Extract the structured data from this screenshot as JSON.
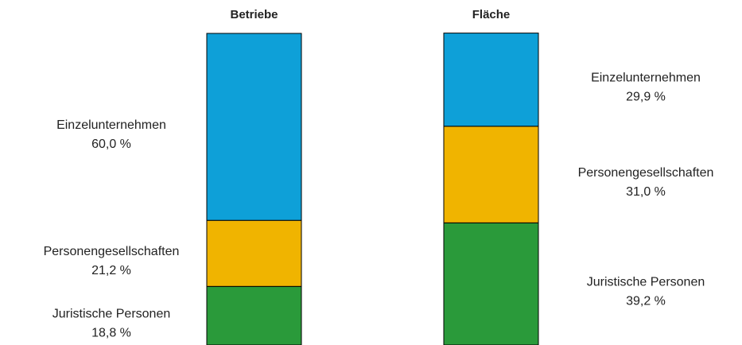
{
  "chart_data": {
    "type": "stacked_bar_100",
    "categories": [
      "Betriebe",
      "Fläche"
    ],
    "series": [
      {
        "name": "Juristische Personen",
        "color": "#2a9a3a",
        "values": [
          18.8,
          39.2
        ],
        "value_labels": [
          "18,8 %",
          "39,2 %"
        ]
      },
      {
        "name": "Personengesellschaften",
        "color": "#f0b400",
        "values": [
          21.2,
          31.0
        ],
        "value_labels": [
          "21,2 %",
          "31,0 %"
        ]
      },
      {
        "name": "Einzelunternehmen",
        "color": "#0ea0d8",
        "values": [
          60.0,
          29.9
        ],
        "value_labels": [
          "60,0 %",
          "29,9 %"
        ]
      }
    ],
    "ylim": [
      0,
      100
    ]
  }
}
